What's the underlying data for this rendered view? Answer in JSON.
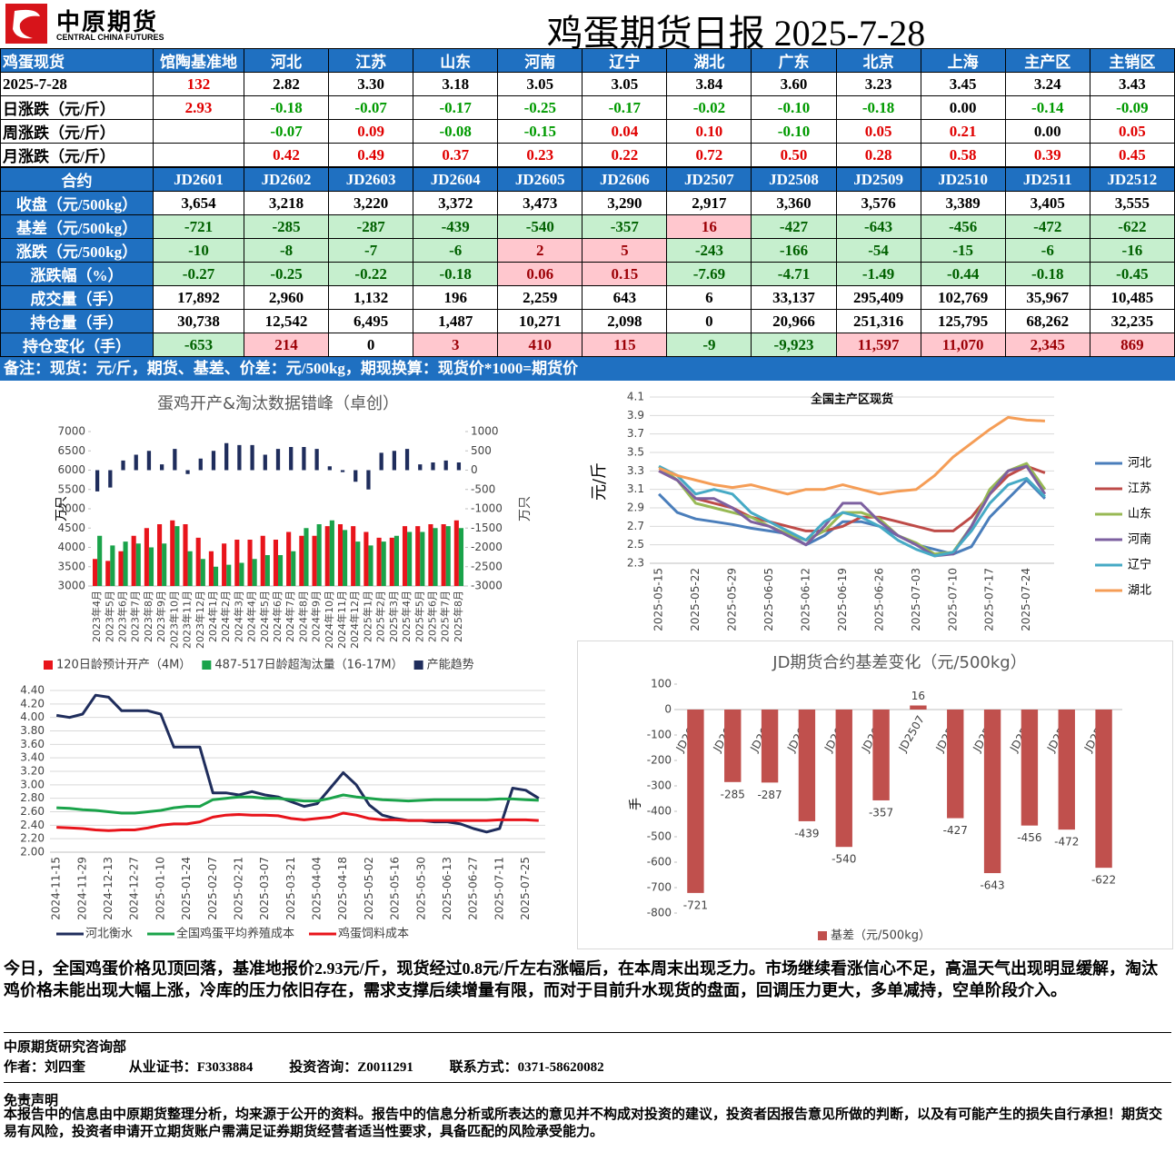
{
  "header": {
    "logo_cn": "中原期货",
    "logo_en": "CENTRAL CHINA FUTURES",
    "title": "鸡蛋期货日报 2025-7-28"
  },
  "spot_table": {
    "header": [
      "鸡蛋现货",
      "馆陶基准地",
      "河北",
      "江苏",
      "山东",
      "河南",
      "辽宁",
      "湖北",
      "广东",
      "北京",
      "上海",
      "主产区",
      "主销区"
    ],
    "rows": [
      [
        "2025-7-28",
        "132",
        "2.82",
        "3.30",
        "3.18",
        "3.05",
        "3.05",
        "3.84",
        "3.60",
        "3.23",
        "3.45",
        "3.24",
        "3.43"
      ],
      [
        "日涨跌（元/斤）",
        "2.93",
        "-0.18",
        "-0.07",
        "-0.17",
        "-0.25",
        "-0.17",
        "-0.02",
        "-0.10",
        "-0.18",
        "0.00",
        "-0.14",
        "-0.09"
      ],
      [
        "周涨跌（元/斤）",
        null,
        "-0.07",
        "0.09",
        "-0.08",
        "-0.15",
        "0.04",
        "0.10",
        "-0.10",
        "0.05",
        "0.21",
        "0.00",
        "0.05"
      ],
      [
        "月涨跌（元/斤）",
        null,
        "0.42",
        "0.49",
        "0.37",
        "0.23",
        "0.22",
        "0.72",
        "0.50",
        "0.28",
        "0.58",
        "0.39",
        "0.45"
      ]
    ]
  },
  "futures_table": {
    "header": [
      "合约",
      "JD2601",
      "JD2602",
      "JD2603",
      "JD2604",
      "JD2605",
      "JD2606",
      "JD2507",
      "JD2508",
      "JD2509",
      "JD2510",
      "JD2511",
      "JD2512"
    ],
    "rows": [
      [
        "收盘（元/500kg）",
        "3,654",
        "3,218",
        "3,220",
        "3,372",
        "3,473",
        "3,290",
        "2,917",
        "3,360",
        "3,576",
        "3,389",
        "3,405",
        "3,555"
      ],
      [
        "基差（元/500kg）",
        "-721",
        "-285",
        "-287",
        "-439",
        "-540",
        "-357",
        "16",
        "-427",
        "-643",
        "-456",
        "-472",
        "-622"
      ],
      [
        "涨跌（元/500kg）",
        "-10",
        "-8",
        "-7",
        "-6",
        "2",
        "5",
        "-243",
        "-166",
        "-54",
        "-15",
        "-6",
        "-16"
      ],
      [
        "涨跌幅（%）",
        "-0.27",
        "-0.25",
        "-0.22",
        "-0.18",
        "0.06",
        "0.15",
        "-7.69",
        "-4.71",
        "-1.49",
        "-0.44",
        "-0.18",
        "-0.45"
      ],
      [
        "成交量（手）",
        "17,892",
        "2,960",
        "1,132",
        "196",
        "2,259",
        "643",
        "6",
        "33,137",
        "295,409",
        "102,769",
        "35,967",
        "10,485"
      ],
      [
        "持仓量（手）",
        "30,738",
        "12,542",
        "6,495",
        "1,487",
        "10,271",
        "2,098",
        "0",
        "20,966",
        "251,316",
        "125,795",
        "68,262",
        "32,235"
      ],
      [
        "持仓变化（手）",
        "-653",
        "214",
        "0",
        "3",
        "410",
        "115",
        "-9",
        "-9,923",
        "11,597",
        "11,070",
        "2,345",
        "869"
      ]
    ]
  },
  "note": "备注：现货：元/斤，期货、基差、价差：元/500kg，期现换算：现货价*1000=期货价",
  "chart_data": [
    {
      "type": "bar",
      "title": "蛋鸡开产&淘汰数据错峰（卓创）",
      "ylabel": "万只",
      "y2label": "万只",
      "categories": [
        "2023年4月",
        "2023年5月",
        "2023年6月",
        "2023年7月",
        "2023年8月",
        "2023年9月",
        "2023年10月",
        "2023年11月",
        "2023年12月",
        "2024年1月",
        "2024年2月",
        "2024年3月",
        "2024年4月",
        "2024年5月",
        "2024年6月",
        "2024年7月",
        "2024年8月",
        "2024年9月",
        "2024年10月",
        "2024年11月",
        "2024年12月",
        "2025年1月",
        "2025年2月",
        "2025年3月",
        "2025年4月",
        "2025年5月",
        "2025年6月",
        "2025年7月",
        "2025年8月"
      ],
      "series": [
        {
          "name": "120日龄预计开产（4M）",
          "color": "#e8141b",
          "values": [
            3700,
            3650,
            3900,
            4300,
            4500,
            4600,
            4700,
            4600,
            4250,
            3900,
            4100,
            4200,
            4200,
            4300,
            4200,
            4400,
            4300,
            4300,
            4550,
            4600,
            4550,
            4400,
            4250,
            4250,
            4550,
            4550,
            4600,
            4600,
            4700
          ]
        },
        {
          "name": "487-517日龄超淘汰量（16-17M）",
          "color": "#1aa34a",
          "values": [
            4300,
            4050,
            4150,
            4100,
            4000,
            4100,
            4550,
            3900,
            3700,
            3500,
            3550,
            3600,
            3700,
            3800,
            3800,
            3900,
            4500,
            4600,
            4700,
            4450,
            4150,
            4050,
            4150,
            4300,
            4400,
            4400,
            4500,
            4550,
            4500
          ]
        },
        {
          "name": "产能趋势",
          "color": "#1f2d5c",
          "axis": "y2",
          "values": [
            -550,
            -450,
            250,
            400,
            500,
            150,
            550,
            -100,
            300,
            500,
            700,
            650,
            650,
            400,
            550,
            600,
            600,
            550,
            100,
            -50,
            -300,
            -500,
            450,
            500,
            550,
            150,
            200,
            250,
            200
          ]
        }
      ],
      "ylim": [
        3000,
        7000
      ],
      "yticks": [
        3000,
        3500,
        4000,
        4500,
        5000,
        5500,
        6000,
        6500,
        7000
      ],
      "y2lim": [
        -3000,
        1000
      ],
      "y2ticks": [
        -3000,
        -2500,
        -2000,
        -1500,
        -1000,
        -500,
        0,
        500,
        1000
      ],
      "grid": false,
      "legend": "bottom"
    },
    {
      "type": "line",
      "title": "全国主产区现货",
      "ylabel": "元/斤",
      "categories": [
        "2025-05-15",
        null,
        "2025-05-22",
        null,
        "2025-05-29",
        null,
        "2025-06-05",
        null,
        "2025-06-12",
        null,
        "2025-06-19",
        null,
        "2025-06-26",
        null,
        "2025-07-03",
        null,
        "2025-07-10",
        null,
        "2025-07-17",
        null,
        "2025-07-24",
        null
      ],
      "series": [
        {
          "name": "河北",
          "color": "#4a7ebb",
          "values": [
            3.05,
            2.85,
            2.78,
            2.75,
            2.72,
            2.68,
            2.65,
            2.62,
            2.5,
            2.6,
            2.75,
            2.75,
            2.7,
            2.6,
            2.5,
            2.45,
            2.4,
            2.48,
            2.8,
            3.0,
            3.2,
            3.0
          ]
        },
        {
          "name": "江苏",
          "color": "#be4b48",
          "values": [
            3.3,
            3.2,
            3.0,
            2.95,
            2.9,
            2.8,
            2.75,
            2.7,
            2.65,
            2.65,
            2.7,
            2.8,
            2.8,
            2.75,
            2.7,
            2.65,
            2.65,
            2.8,
            3.05,
            3.25,
            3.35,
            3.28
          ]
        },
        {
          "name": "山东",
          "color": "#98b954",
          "values": [
            3.35,
            3.2,
            2.95,
            2.9,
            2.85,
            2.8,
            2.7,
            2.62,
            2.55,
            2.65,
            2.85,
            2.85,
            2.78,
            2.6,
            2.52,
            2.4,
            2.42,
            2.7,
            3.1,
            3.3,
            3.38,
            3.1
          ]
        },
        {
          "name": "河南",
          "color": "#7d60a0",
          "values": [
            3.3,
            3.2,
            3.0,
            3.0,
            2.9,
            2.75,
            2.7,
            2.6,
            2.5,
            2.7,
            2.95,
            2.95,
            2.75,
            2.6,
            2.5,
            2.38,
            2.4,
            2.7,
            3.05,
            3.3,
            3.35,
            3.05
          ]
        },
        {
          "name": "辽宁",
          "color": "#46aac5",
          "values": [
            3.35,
            3.25,
            3.05,
            3.1,
            3.05,
            2.85,
            2.75,
            2.65,
            2.55,
            2.75,
            2.85,
            2.8,
            2.7,
            2.55,
            2.45,
            2.38,
            2.42,
            2.65,
            2.95,
            3.15,
            3.22,
            3.02
          ]
        },
        {
          "name": "湖北",
          "color": "#f59d56",
          "values": [
            3.33,
            3.25,
            3.2,
            3.15,
            3.12,
            3.15,
            3.1,
            3.05,
            3.1,
            3.1,
            3.15,
            3.1,
            3.05,
            3.08,
            3.1,
            3.25,
            3.45,
            3.6,
            3.75,
            3.88,
            3.85,
            3.84
          ]
        }
      ],
      "ylim": [
        2.3,
        4.1
      ],
      "yticks": [
        2.3,
        2.5,
        2.7,
        2.9,
        3.1,
        3.3,
        3.5,
        3.7,
        3.9,
        4.1
      ],
      "grid": true,
      "legend": "right"
    },
    {
      "type": "line",
      "categories": [
        "2024-11-15",
        null,
        "2024-11-29",
        null,
        "2024-12-13",
        null,
        "2024-12-27",
        null,
        "2025-01-10",
        null,
        "2025-01-24",
        null,
        "2025-02-07",
        null,
        "2025-02-21",
        null,
        "2025-03-07",
        null,
        "2025-03-21",
        null,
        "2025-04-04",
        null,
        "2025-04-18",
        null,
        "2025-05-02",
        null,
        "2025-05-16",
        null,
        "2025-05-30",
        null,
        "2025-06-13",
        null,
        "2025-06-27",
        null,
        "2025-07-11",
        null,
        "2025-07-25",
        null
      ],
      "series": [
        {
          "name": "河北衡水",
          "color": "#1f2d5c",
          "values": [
            4.03,
            4.0,
            4.05,
            4.33,
            4.3,
            4.1,
            4.1,
            4.1,
            4.05,
            3.56,
            3.56,
            3.56,
            2.88,
            2.88,
            2.85,
            2.9,
            2.85,
            2.82,
            2.75,
            2.68,
            2.72,
            2.95,
            3.18,
            3.0,
            2.7,
            2.55,
            2.5,
            2.47,
            2.47,
            2.45,
            2.45,
            2.42,
            2.35,
            2.3,
            2.35,
            2.95,
            2.92,
            2.8
          ]
        },
        {
          "name": "全国鸡蛋平均养殖成本",
          "color": "#1aa34a",
          "values": [
            2.66,
            2.65,
            2.63,
            2.62,
            2.6,
            2.58,
            2.58,
            2.6,
            2.62,
            2.66,
            2.68,
            2.68,
            2.78,
            2.8,
            2.82,
            2.82,
            2.8,
            2.8,
            2.78,
            2.76,
            2.76,
            2.8,
            2.85,
            2.82,
            2.8,
            2.78,
            2.77,
            2.76,
            2.77,
            2.78,
            2.78,
            2.78,
            2.78,
            2.78,
            2.79,
            2.79,
            2.78,
            2.77
          ]
        },
        {
          "name": "鸡蛋饲料成本",
          "color": "#e8141b",
          "values": [
            2.37,
            2.36,
            2.35,
            2.33,
            2.32,
            2.33,
            2.33,
            2.36,
            2.4,
            2.42,
            2.42,
            2.45,
            2.52,
            2.55,
            2.56,
            2.55,
            2.55,
            2.54,
            2.5,
            2.48,
            2.5,
            2.52,
            2.58,
            2.55,
            2.5,
            2.48,
            2.48,
            2.47,
            2.47,
            2.47,
            2.47,
            2.47,
            2.47,
            2.47,
            2.48,
            2.48,
            2.48,
            2.47
          ]
        }
      ],
      "ylim": [
        2.0,
        4.4
      ],
      "yticks": [
        {
          "value": 2.0,
          "label": "2.00"
        },
        {
          "value": 2.2,
          "label": "2.20"
        },
        {
          "value": 2.4,
          "label": "2.40"
        },
        {
          "value": 2.6,
          "label": "2.60"
        },
        {
          "value": 2.8,
          "label": "2.80"
        },
        {
          "value": 3.0,
          "label": "3.00"
        },
        {
          "value": 3.2,
          "label": "3.20"
        },
        {
          "value": 3.4,
          "label": "3.40"
        },
        {
          "value": 3.6,
          "label": "3.60"
        },
        {
          "value": 3.8,
          "label": "3.80"
        },
        {
          "value": 4.0,
          "label": "4.00"
        },
        {
          "value": 4.2,
          "label": "4.20"
        },
        {
          "value": 4.4,
          "label": "4.40"
        }
      ],
      "grid": true,
      "legend": "bottom"
    },
    {
      "type": "bar",
      "title": "JD期货合约基差变化（元/500kg）",
      "ylabel": "手",
      "categories": [
        "JD2601",
        "JD2602",
        "JD2603",
        "JD2604",
        "JD2605",
        "JD2606",
        "JD2507",
        "JD2508",
        "JD2509",
        "JD2510",
        "JD2511",
        "JD2512"
      ],
      "series": [
        {
          "name": "基差（元/500kg）",
          "color": "#c0504d",
          "values": [
            -721,
            -285,
            -287,
            -439,
            -540,
            -357,
            16,
            -427,
            -643,
            -456,
            -472,
            -622
          ]
        }
      ],
      "ylim": [
        -800,
        100
      ],
      "yticks": [
        -800,
        -700,
        -600,
        -500,
        -400,
        -300,
        -200,
        -100,
        0,
        100
      ],
      "grid": false,
      "legend": "bottom",
      "data_labels": true
    }
  ],
  "commentary": "今日，全国鸡蛋价格见顶回落，基准地报价2.93元/斤，现货经过0.8元/斤左右涨幅后，在本周末出现乏力。市场继续看涨信心不足，高温天气出现明显缓解，淘汰鸡价格未能出现大幅上涨，冷库的压力依旧存在，需求支撑后续增量有限，而对于目前升水现货的盘面，回调压力更大，多单减持，空单阶段介入。",
  "footer": {
    "dept": "中原期货研究咨询部",
    "author": "作者：刘四奎",
    "cert": "从业证书：F3033884",
    "advisory": "投资咨询：Z0011291",
    "contact": "联系方式：0371-58620082"
  },
  "disclaimer": {
    "title": "免责声明",
    "text": "本报告中的信息由中原期货整理分析，均来源于公开的资料。报告中的信息分析或所表达的意见并不构成对投资的建议，投资者因报告意见所做的判断，以及有可能产生的损失自行承担！期货交易有风险，投资者申请开立期货账户需满足证券期货经营者适当性要求，具备匹配的风险承受能力。"
  }
}
